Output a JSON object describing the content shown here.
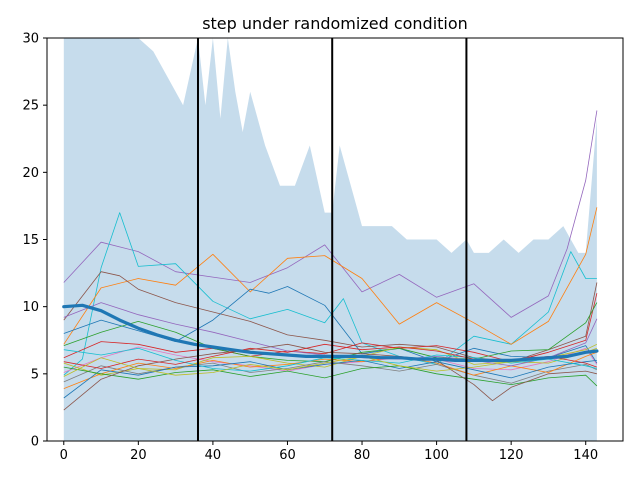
{
  "chart_data": {
    "type": "line",
    "title": "step under randomized condition",
    "xlabel": "",
    "ylabel": "",
    "xlim": [
      -4.5,
      150
    ],
    "ylim": [
      0,
      30
    ],
    "xticks": [
      0,
      20,
      40,
      60,
      80,
      100,
      120,
      140
    ],
    "yticks": [
      0,
      5,
      10,
      15,
      20,
      25,
      30
    ],
    "grid": false,
    "legend": "none",
    "vlines": [
      36,
      72,
      108
    ],
    "band": {
      "color": "#c6dcec",
      "x": [
        0,
        8,
        9,
        10,
        12,
        14,
        16,
        18,
        20,
        24,
        28,
        32,
        36,
        38,
        40,
        42,
        44,
        46,
        48,
        50,
        54,
        58,
        62,
        66,
        70,
        72,
        74,
        76,
        78,
        80,
        84,
        88,
        92,
        96,
        100,
        104,
        108,
        110,
        114,
        118,
        122,
        126,
        130,
        134,
        138,
        140,
        143
      ],
      "upper": [
        30,
        30,
        30,
        30,
        30,
        30,
        30,
        30,
        30,
        29,
        27,
        25,
        30,
        25,
        30,
        24,
        30,
        26,
        23,
        26,
        22,
        19,
        19,
        22,
        17,
        17,
        22,
        20,
        18,
        16,
        16,
        16,
        15,
        15,
        15,
        14,
        15,
        14,
        14,
        15,
        14,
        15,
        15,
        16,
        14,
        14,
        24
      ],
      "lower": [
        0,
        0,
        0,
        0,
        0,
        0,
        0,
        0,
        0,
        0,
        0,
        0,
        0,
        0,
        0,
        0,
        0,
        0,
        0,
        0,
        0,
        0,
        0,
        0,
        0,
        0,
        0,
        0,
        0,
        0,
        0,
        0,
        0,
        0,
        0,
        0,
        0,
        0,
        0,
        0,
        0,
        0,
        0,
        0,
        0,
        0,
        0
      ]
    },
    "mean": {
      "color": "#1f77b4",
      "x": [
        0,
        5,
        10,
        15,
        20,
        25,
        30,
        35,
        40,
        45,
        50,
        55,
        60,
        65,
        70,
        75,
        80,
        85,
        90,
        95,
        100,
        105,
        110,
        115,
        120,
        125,
        130,
        135,
        140,
        143
      ],
      "values": [
        10.0,
        10.1,
        9.7,
        9.0,
        8.4,
        7.9,
        7.5,
        7.2,
        7.0,
        6.8,
        6.6,
        6.5,
        6.4,
        6.3,
        6.3,
        6.3,
        6.3,
        6.2,
        6.2,
        6.1,
        6.1,
        6.0,
        6.0,
        6.0,
        6.0,
        6.1,
        6.2,
        6.3,
        6.6,
        6.7
      ]
    },
    "series": [
      {
        "color": "#9467bd",
        "x": [
          0,
          10,
          20,
          30,
          40,
          50,
          60,
          70,
          80,
          90,
          100,
          110,
          120,
          130,
          135,
          140,
          143
        ],
        "values": [
          11.8,
          14.8,
          14.1,
          12.6,
          12.2,
          11.8,
          12.9,
          14.6,
          11.1,
          12.4,
          10.7,
          11.7,
          9.2,
          10.8,
          14.3,
          19.4,
          24.6
        ]
      },
      {
        "color": "#17becf",
        "x": [
          0,
          5,
          10,
          15,
          20,
          30,
          40,
          50,
          60,
          70,
          75,
          80,
          90,
          100,
          110,
          120,
          130,
          136,
          140,
          143
        ],
        "values": [
          4.9,
          6.1,
          12.9,
          17.0,
          13.0,
          13.2,
          10.4,
          9.1,
          9.8,
          8.8,
          10.6,
          7.3,
          6.3,
          5.7,
          7.8,
          7.2,
          9.6,
          14.1,
          12.1,
          12.1
        ]
      },
      {
        "color": "#ff7f0e",
        "x": [
          0,
          10,
          20,
          30,
          40,
          50,
          60,
          70,
          80,
          90,
          100,
          110,
          120,
          130,
          140,
          143
        ],
        "values": [
          7.2,
          11.4,
          12.1,
          11.6,
          13.9,
          11.1,
          13.6,
          13.8,
          12.1,
          8.7,
          10.3,
          8.8,
          7.2,
          8.9,
          13.9,
          17.4
        ]
      },
      {
        "color": "#8c564b",
        "x": [
          0,
          10,
          15,
          20,
          30,
          40,
          50,
          60,
          70,
          80,
          90,
          100,
          110,
          120,
          130,
          140,
          143
        ],
        "values": [
          9.0,
          12.6,
          12.3,
          11.3,
          10.3,
          9.6,
          8.9,
          7.9,
          7.5,
          7.0,
          7.2,
          7.0,
          6.2,
          5.9,
          6.8,
          7.8,
          11.8
        ]
      },
      {
        "color": "#1f77b4",
        "x": [
          0,
          10,
          20,
          30,
          40,
          50,
          55,
          60,
          70,
          80,
          90,
          100,
          110,
          120,
          130,
          140,
          143
        ],
        "values": [
          8.0,
          9.0,
          8.2,
          7.4,
          9.0,
          11.3,
          11.0,
          11.5,
          10.1,
          6.5,
          6.9,
          5.9,
          6.9,
          6.3,
          6.2,
          7.1,
          5.8
        ]
      },
      {
        "color": "#d62728",
        "x": [
          0,
          10,
          20,
          30,
          40,
          50,
          60,
          70,
          80,
          90,
          100,
          110,
          120,
          130,
          140,
          143
        ],
        "values": [
          6.2,
          7.4,
          7.2,
          6.6,
          6.9,
          6.3,
          6.7,
          6.5,
          7.3,
          6.9,
          7.1,
          6.6,
          5.9,
          6.6,
          7.5,
          11.0
        ]
      },
      {
        "color": "#2ca02c",
        "x": [
          0,
          10,
          20,
          30,
          40,
          50,
          60,
          70,
          80,
          90,
          100,
          110,
          120,
          130,
          140,
          143
        ],
        "values": [
          7.1,
          8.1,
          8.9,
          8.1,
          6.9,
          6.3,
          6.0,
          5.9,
          6.6,
          6.9,
          6.2,
          6.1,
          6.7,
          6.8,
          8.8,
          10.3
        ]
      },
      {
        "color": "#e377c2",
        "x": [
          0,
          10,
          20,
          30,
          40,
          50,
          60,
          70,
          80,
          90,
          100,
          110,
          120,
          130,
          140,
          143
        ],
        "values": [
          5.1,
          6.2,
          7.0,
          6.4,
          5.9,
          5.6,
          5.2,
          5.7,
          5.9,
          6.2,
          6.1,
          5.4,
          5.3,
          5.9,
          6.9,
          5.7
        ]
      },
      {
        "color": "#bcbd22",
        "x": [
          0,
          10,
          20,
          30,
          40,
          50,
          60,
          70,
          80,
          90,
          100,
          110,
          120,
          130,
          140,
          143
        ],
        "values": [
          5.8,
          4.9,
          5.4,
          5.3,
          6.2,
          6.3,
          5.8,
          5.5,
          6.3,
          7.0,
          6.8,
          5.7,
          5.9,
          5.8,
          6.6,
          6.9
        ]
      },
      {
        "color": "#7f7f7f",
        "x": [
          0,
          10,
          20,
          30,
          40,
          50,
          60,
          70,
          80,
          90,
          100,
          110,
          120,
          130,
          140,
          143
        ],
        "values": [
          4.4,
          5.6,
          5.0,
          5.5,
          5.8,
          5.1,
          5.4,
          5.9,
          5.6,
          5.2,
          5.7,
          4.9,
          4.3,
          5.2,
          5.7,
          5.3
        ]
      },
      {
        "color": "#ff7f0e",
        "x": [
          0,
          10,
          20,
          30,
          40,
          50,
          60,
          70,
          80,
          90,
          100,
          110,
          120,
          130,
          140,
          143
        ],
        "values": [
          3.9,
          5.0,
          5.8,
          5.4,
          6.0,
          5.5,
          5.7,
          6.1,
          5.9,
          6.3,
          5.8,
          4.9,
          5.6,
          5.1,
          6.3,
          6.6
        ]
      },
      {
        "color": "#1f77b4",
        "x": [
          0,
          10,
          20,
          30,
          40,
          50,
          60,
          70,
          80,
          90,
          100,
          110,
          120,
          130,
          140,
          143
        ],
        "values": [
          3.2,
          5.3,
          4.9,
          5.5,
          5.6,
          5.9,
          5.3,
          5.7,
          6.0,
          5.4,
          5.9,
          5.3,
          4.7,
          5.5,
          5.9,
          6.0
        ]
      },
      {
        "color": "#2ca02c",
        "x": [
          0,
          10,
          20,
          30,
          40,
          50,
          60,
          70,
          80,
          90,
          100,
          110,
          120,
          130,
          140,
          143
        ],
        "values": [
          5.5,
          5.0,
          4.6,
          5.1,
          5.3,
          4.8,
          5.2,
          4.7,
          5.4,
          5.6,
          5.0,
          4.6,
          4.2,
          4.7,
          4.9,
          4.1
        ]
      },
      {
        "color": "#9467bd",
        "x": [
          0,
          10,
          20,
          30,
          40,
          50,
          60,
          70,
          80,
          90,
          100,
          110,
          120,
          130,
          140,
          143
        ],
        "values": [
          9.2,
          10.3,
          9.4,
          8.7,
          8.1,
          7.4,
          6.7,
          6.4,
          6.2,
          6.1,
          6.3,
          6.0,
          5.6,
          6.2,
          7.3,
          9.1
        ]
      },
      {
        "color": "#8c564b",
        "x": [
          0,
          10,
          20,
          30,
          40,
          50,
          60,
          70,
          80,
          90,
          100,
          110,
          115,
          120,
          130,
          140,
          143
        ],
        "values": [
          2.3,
          4.6,
          5.6,
          6.1,
          6.5,
          6.8,
          7.2,
          6.6,
          6.5,
          6.3,
          6.0,
          4.2,
          3.0,
          4.0,
          5.0,
          5.2,
          5.0
        ]
      },
      {
        "color": "#17becf",
        "x": [
          0,
          10,
          20,
          30,
          40,
          50,
          60,
          70,
          80,
          90,
          100,
          110,
          120,
          130,
          140,
          143
        ],
        "values": [
          6.8,
          6.4,
          6.9,
          6.0,
          5.4,
          5.2,
          5.6,
          6.2,
          6.0,
          5.8,
          6.4,
          6.2,
          5.8,
          6.1,
          5.6,
          5.4
        ]
      },
      {
        "color": "#d62728",
        "x": [
          0,
          10,
          20,
          30,
          40,
          50,
          60,
          70,
          80,
          90,
          100,
          110,
          120,
          130,
          140,
          143
        ],
        "values": [
          5.9,
          5.4,
          6.1,
          5.7,
          6.3,
          6.9,
          6.6,
          7.2,
          6.8,
          7.0,
          6.7,
          6.1,
          6.0,
          6.3,
          5.8,
          5.5
        ]
      },
      {
        "color": "#bcbd22",
        "x": [
          0,
          10,
          20,
          30,
          40,
          50,
          60,
          70,
          80,
          90,
          100,
          110,
          120,
          130,
          140,
          143
        ],
        "values": [
          4.8,
          6.2,
          5.4,
          4.9,
          5.1,
          5.7,
          5.3,
          5.8,
          6.3,
          5.6,
          5.2,
          5.5,
          5.9,
          6.2,
          6.8,
          7.2
        ]
      }
    ]
  }
}
